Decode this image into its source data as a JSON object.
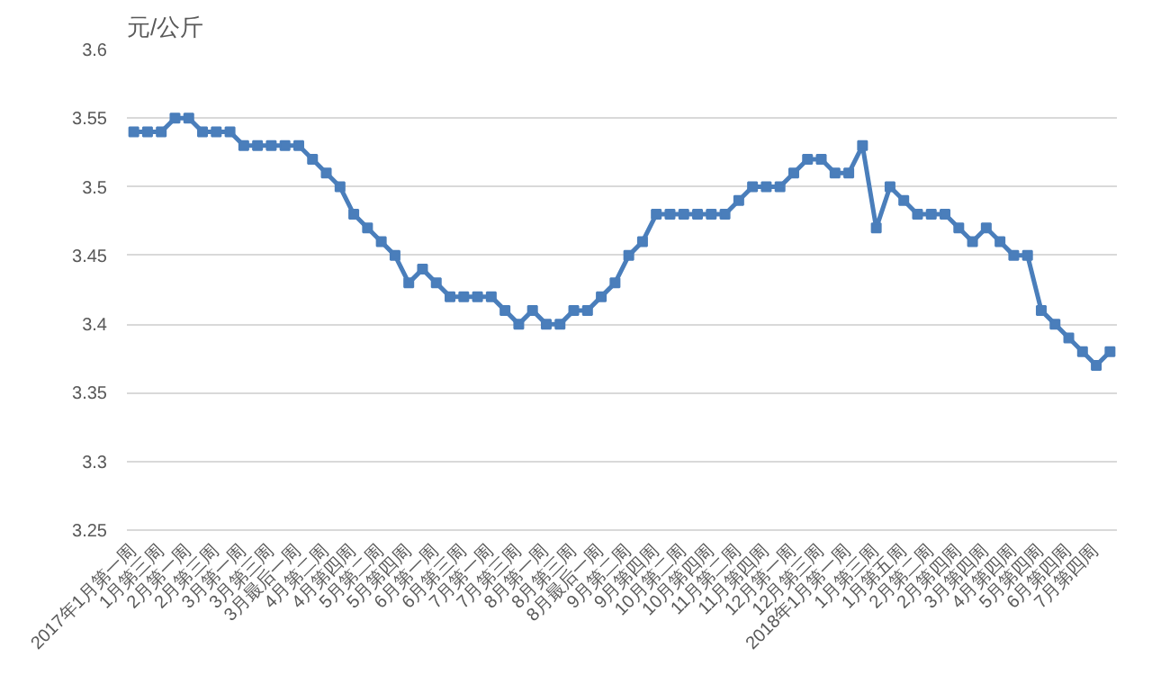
{
  "chart_data": {
    "type": "line",
    "ylabel": "元/公斤",
    "categories": [
      "2017年1月第一周",
      null,
      "1月第三周",
      null,
      "2月第一周",
      null,
      "2月第三周",
      null,
      "3月第一周",
      null,
      "3月第三周",
      null,
      "3月最后一周",
      null,
      "4月第二周",
      null,
      "4月第四周",
      null,
      "5月第二周",
      null,
      "5月第四周",
      null,
      "6月第一周",
      null,
      "6月第三周",
      null,
      "7月第一周",
      null,
      "7月第三周",
      null,
      "8月第一周",
      null,
      "8月第三周",
      null,
      "8月最后一周",
      null,
      "9月第二周",
      null,
      "9月第四周",
      null,
      "10月第二周",
      null,
      "10月第四周",
      null,
      "11月第二周",
      null,
      "11月第四周",
      null,
      "12月第一周",
      null,
      "12月第三周",
      null,
      "2018年1月第一周",
      null,
      "1月第三周",
      null,
      "1月第五周",
      null,
      "2月第二周",
      null,
      "2月第四周",
      null,
      "3月第四周",
      null,
      "4月第四周",
      null,
      "5月第四周",
      null,
      "6月第四周",
      null,
      "7月第四周",
      null
    ],
    "series": [
      {
        "color": "#4a7ebb",
        "values": [
          3.54,
          3.54,
          3.54,
          3.55,
          3.55,
          3.54,
          3.54,
          3.54,
          3.53,
          3.53,
          3.53,
          3.53,
          3.53,
          3.52,
          3.51,
          3.5,
          3.48,
          3.47,
          3.46,
          3.45,
          3.43,
          3.44,
          3.43,
          3.42,
          3.42,
          3.42,
          3.42,
          3.41,
          3.4,
          3.41,
          3.4,
          3.4,
          3.41,
          3.41,
          3.42,
          3.43,
          3.45,
          3.46,
          3.48,
          3.48,
          3.48,
          3.48,
          3.48,
          3.48,
          3.49,
          3.5,
          3.5,
          3.5,
          3.51,
          3.52,
          3.52,
          3.51,
          3.51,
          3.53,
          3.47,
          3.5,
          3.49,
          3.48,
          3.48,
          3.48,
          3.47,
          3.46,
          3.47,
          3.46,
          3.45,
          3.45,
          3.41,
          3.4,
          3.39,
          3.38,
          3.37,
          3.38
        ]
      }
    ],
    "ylim": [
      3.25,
      3.6
    ],
    "yticks": [
      3.25,
      3.3,
      3.35,
      3.4,
      3.45,
      3.5,
      3.55,
      3.6
    ],
    "grid": "y",
    "marker": "square",
    "line_style": "solid"
  }
}
